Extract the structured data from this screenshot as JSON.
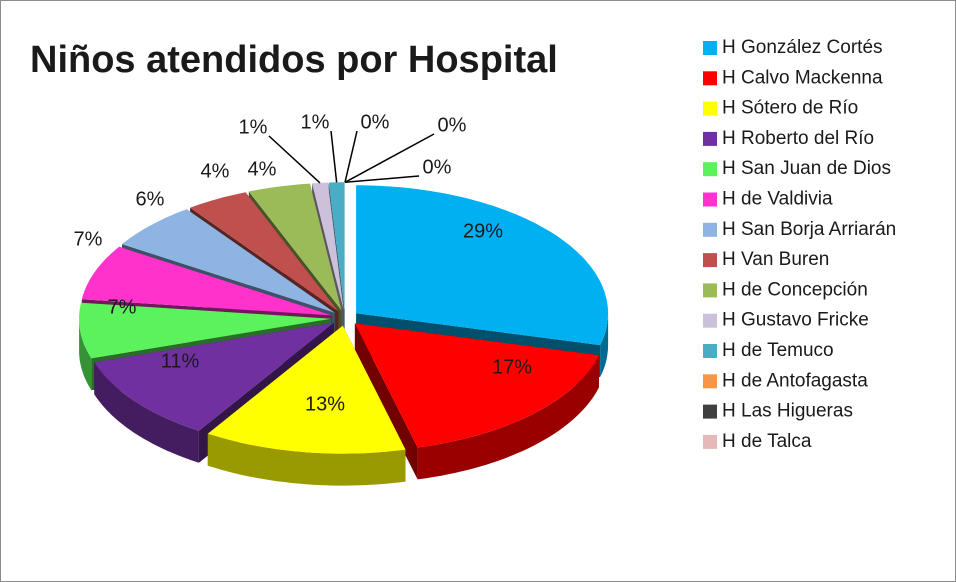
{
  "chart_data": {
    "type": "pie",
    "title": "Niños atendidos por Hospital",
    "categories": [
      "H González Cortés",
      "H Calvo Mackenna",
      "H Sótero de Río",
      "H Roberto del Río",
      "H San Juan de Dios",
      "H de Valdivia",
      "H San Borja Arriarán",
      "H Van Buren",
      "H de Concepción",
      "H Gustavo Fricke",
      "H de Temuco",
      "H de Antofagasta",
      "H Las Higueras",
      "H de Talca"
    ],
    "values": [
      29,
      17,
      13,
      11,
      7,
      7,
      6,
      4,
      4,
      1,
      1,
      0,
      0,
      0
    ],
    "value_labels": [
      "29%",
      "17%",
      "13%",
      "11%",
      "7%",
      "7%",
      "6%",
      "4%",
      "4%",
      "1%",
      "1%",
      "0%",
      "0%",
      "0%"
    ],
    "colors": [
      "#00b0f0",
      "#ff0000",
      "#ffff00",
      "#7030a0",
      "#5cf25c",
      "#ff33cc",
      "#8db4e2",
      "#c0504d",
      "#9bbb59",
      "#ccc0da",
      "#4bacc6",
      "#f79646",
      "#404040",
      "#e6b9b8"
    ],
    "legend": "right"
  }
}
